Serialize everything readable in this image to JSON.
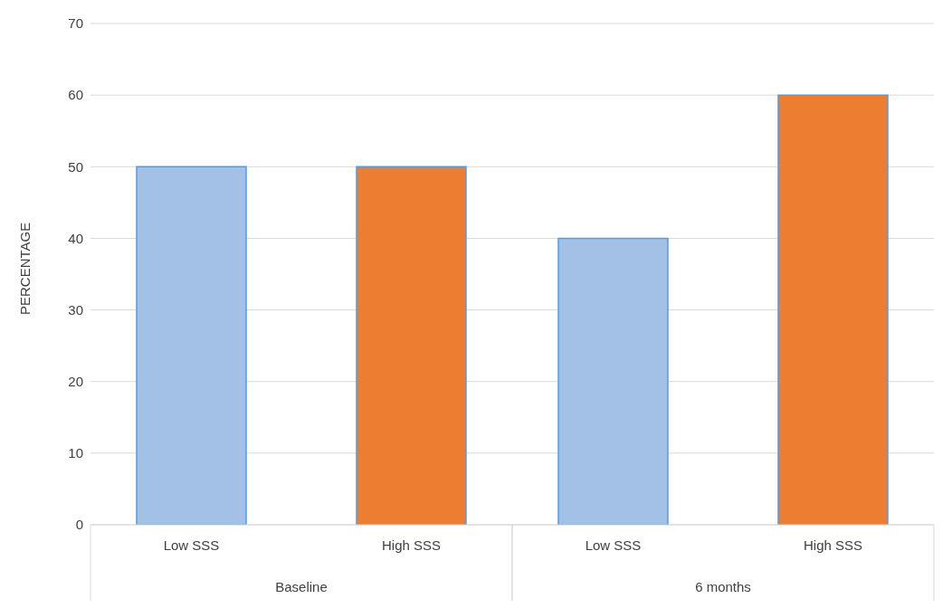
{
  "chart_data": {
    "type": "bar",
    "ylabel": "PERCENTAGE",
    "categories": [
      "Baseline",
      "6 months"
    ],
    "series": [
      {
        "name": "Low SSS",
        "color": "#a3c1e6",
        "values": [
          50,
          40
        ]
      },
      {
        "name": "High SSS",
        "color": "#ed7d31",
        "values": [
          50,
          60
        ]
      }
    ],
    "ylim": [
      0,
      70
    ],
    "yticks": [
      0,
      10,
      20,
      30,
      40,
      50,
      60,
      70
    ],
    "grid": "y",
    "legend": false
  }
}
